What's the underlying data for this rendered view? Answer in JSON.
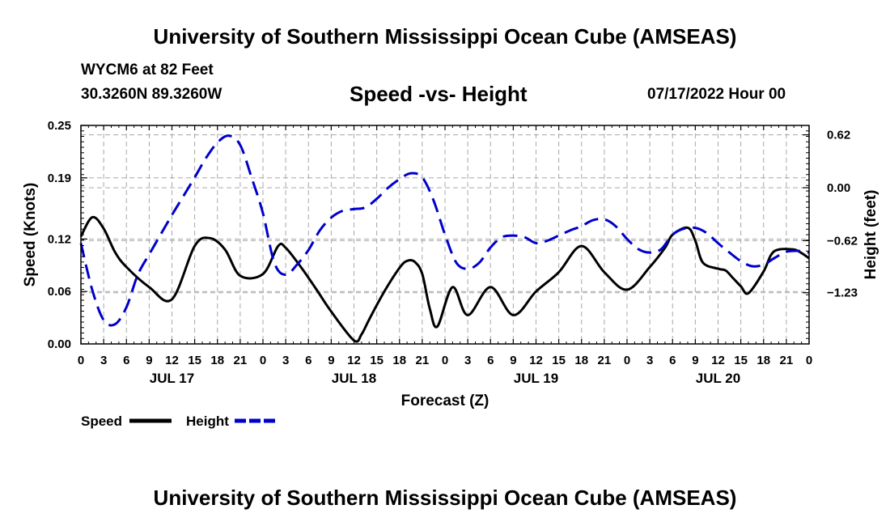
{
  "header": {
    "title": "University of Southern Mississippi Ocean Cube (AMSEAS)",
    "station": "WYCM6 at 82 Feet",
    "coords": "30.3260N  89.3260W",
    "subtitle": "Speed -vs- Height",
    "datetime": "07/17/2022 Hour 00"
  },
  "footer": {
    "title": "University of Southern Mississippi Ocean Cube (AMSEAS)"
  },
  "chart_data": {
    "type": "line",
    "title": "Speed -vs- Height",
    "xlabel": "Forecast (Z)",
    "ylabel": "Speed (Knots)",
    "y2label": "Height (feet)",
    "xlim": [
      0,
      96
    ],
    "ylim": [
      0,
      0.25
    ],
    "y2lim": [
      -1.83,
      0.73
    ],
    "grid": true,
    "x_ticks": [
      0,
      3,
      6,
      9,
      12,
      15,
      18,
      21,
      24,
      27,
      30,
      33,
      36,
      39,
      42,
      45,
      48,
      51,
      54,
      57,
      60,
      63,
      66,
      69,
      72,
      75,
      78,
      81,
      84,
      87,
      90,
      93,
      96
    ],
    "x_tick_labels": [
      "0",
      "3",
      "6",
      "9",
      "12",
      "15",
      "18",
      "21",
      "0",
      "3",
      "6",
      "9",
      "12",
      "15",
      "18",
      "21",
      "0",
      "3",
      "6",
      "9",
      "12",
      "15",
      "18",
      "21",
      "0",
      "3",
      "6",
      "9",
      "12",
      "15",
      "18",
      "21",
      "0"
    ],
    "date_labels": [
      {
        "x": 12,
        "label": "JUL 17"
      },
      {
        "x": 36,
        "label": "JUL 18"
      },
      {
        "x": 60,
        "label": "JUL 19"
      },
      {
        "x": 84,
        "label": "JUL 20"
      }
    ],
    "y_ticks": [
      0.0,
      0.06,
      0.12,
      0.19,
      0.25
    ],
    "y_tick_labels": [
      "0.00",
      "0.06",
      "0.12",
      "0.19",
      "0.25"
    ],
    "y2_ticks": [
      -1.23,
      -0.62,
      0.0,
      0.62
    ],
    "y2_tick_labels": [
      "−1.23",
      "−0.62",
      "0.00",
      "0.62"
    ],
    "legend": [
      {
        "name": "Speed",
        "color": "#000000",
        "dash": "solid"
      },
      {
        "name": "Height",
        "color": "#0000cc",
        "dash": "dashed"
      }
    ],
    "legend_position": "bottom-left",
    "series": [
      {
        "name": "Speed",
        "axis": "left",
        "color": "#000000",
        "x": [
          0,
          1.5,
          3,
          4.5,
          6,
          9,
          12,
          15,
          17,
          19,
          21,
          24,
          26,
          27,
          29,
          31,
          33,
          36,
          37,
          38,
          40,
          42,
          43,
          44,
          45,
          46,
          47,
          49,
          51,
          54,
          57,
          60,
          63,
          66,
          69,
          72,
          75,
          77,
          78,
          80,
          81,
          82,
          84,
          85,
          86,
          87,
          88,
          90,
          91,
          92,
          94,
          95,
          96
        ],
        "y": [
          0.123,
          0.145,
          0.132,
          0.105,
          0.088,
          0.065,
          0.051,
          0.112,
          0.121,
          0.108,
          0.078,
          0.08,
          0.112,
          0.11,
          0.088,
          0.063,
          0.037,
          0.004,
          0.011,
          0.028,
          0.06,
          0.087,
          0.095,
          0.094,
          0.08,
          0.04,
          0.02,
          0.065,
          0.033,
          0.065,
          0.033,
          0.06,
          0.082,
          0.112,
          0.082,
          0.062,
          0.088,
          0.11,
          0.125,
          0.133,
          0.118,
          0.093,
          0.086,
          0.084,
          0.075,
          0.066,
          0.058,
          0.083,
          0.102,
          0.108,
          0.108,
          0.104,
          0.098
        ],
        "dash": "solid"
      },
      {
        "name": "Height",
        "axis": "right",
        "color": "#0000cc",
        "x": [
          0,
          1.5,
          3,
          4.5,
          6,
          7.5,
          9,
          10.5,
          12,
          13.5,
          15,
          16.5,
          18,
          19.5,
          21,
          22.5,
          24,
          25.5,
          27,
          28.5,
          30,
          31.5,
          33,
          34.5,
          36,
          37.5,
          39,
          40.5,
          42,
          43.5,
          45,
          46.5,
          48,
          49.5,
          51,
          52.5,
          54,
          55.5,
          57,
          58.5,
          60,
          61.5,
          63,
          64.5,
          66,
          67.5,
          69,
          70.5,
          72,
          73.5,
          75,
          76.5,
          78,
          79.5,
          81,
          82.5,
          84,
          85.5,
          87,
          88.5,
          90,
          91.5,
          93,
          94.5,
          96
        ],
        "y": [
          -0.65,
          -1.2,
          -1.55,
          -1.6,
          -1.4,
          -1.02,
          -0.78,
          -0.55,
          -0.32,
          -0.1,
          0.12,
          0.35,
          0.53,
          0.61,
          0.5,
          0.12,
          -0.3,
          -0.88,
          -1.02,
          -0.9,
          -0.73,
          -0.5,
          -0.35,
          -0.27,
          -0.25,
          -0.23,
          -0.13,
          0.0,
          0.1,
          0.17,
          0.12,
          -0.15,
          -0.55,
          -0.88,
          -0.95,
          -0.88,
          -0.7,
          -0.58,
          -0.56,
          -0.58,
          -0.65,
          -0.62,
          -0.56,
          -0.5,
          -0.45,
          -0.38,
          -0.37,
          -0.45,
          -0.6,
          -0.72,
          -0.76,
          -0.72,
          -0.55,
          -0.48,
          -0.47,
          -0.53,
          -0.65,
          -0.76,
          -0.86,
          -0.92,
          -0.9,
          -0.82,
          -0.75,
          -0.74,
          -0.76
        ],
        "dash": "dashed"
      }
    ]
  }
}
